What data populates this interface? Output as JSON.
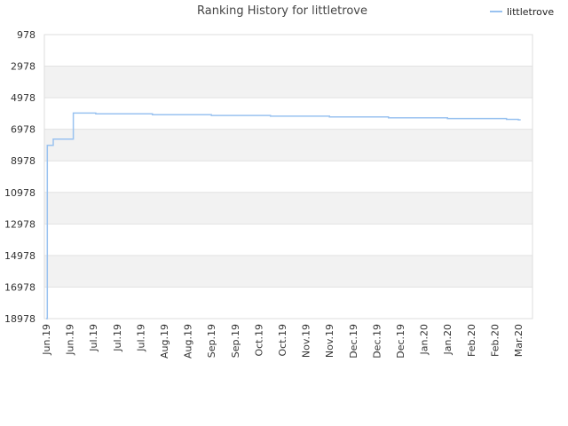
{
  "chart_data": {
    "type": "line",
    "title": "Ranking History for littletrove",
    "xlabel": "",
    "ylabel": "",
    "y_reversed": true,
    "ylim": [
      18978,
      978
    ],
    "y_ticks": [
      "978",
      "2978",
      "4978",
      "6978",
      "8978",
      "10978",
      "12978",
      "14978",
      "16978",
      "18978"
    ],
    "x_ticks": [
      "Jun.19",
      "Jun.19",
      "Jul.19",
      "Jul.19",
      "Jul.19",
      "Aug.19",
      "Aug.19",
      "Sep.19",
      "Sep.19",
      "Oct.19",
      "Oct.19",
      "Nov.19",
      "Nov.19",
      "Dec.19",
      "Dec.19",
      "Dec.19",
      "Jan.20",
      "Jan.20",
      "Feb.20",
      "Feb.20",
      "Mar.20"
    ],
    "grid": true,
    "legend_position": "top-right",
    "series": [
      {
        "name": "littletrove",
        "color": "#99c2f0",
        "points": [
          [
            0.0,
            18978
          ],
          [
            0.05,
            8000
          ],
          [
            0.3,
            7600
          ],
          [
            1.0,
            7600
          ],
          [
            1.15,
            5950
          ],
          [
            2.1,
            6000
          ],
          [
            4.5,
            6050
          ],
          [
            7.0,
            6100
          ],
          [
            9.5,
            6150
          ],
          [
            12.0,
            6200
          ],
          [
            14.5,
            6250
          ],
          [
            17.0,
            6300
          ],
          [
            19.5,
            6350
          ],
          [
            20.0,
            6380
          ],
          [
            20.1,
            6380
          ]
        ]
      }
    ]
  }
}
